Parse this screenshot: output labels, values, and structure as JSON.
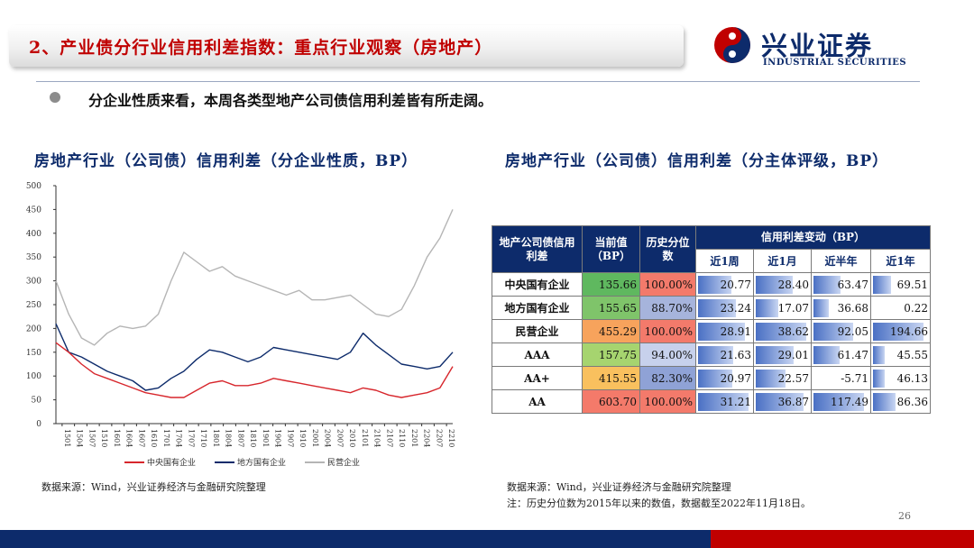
{
  "header": {
    "title": "2、产业债分行业信用利差指数：重点行业观察（房地产）",
    "logo_cn": "兴业证券",
    "logo_en": "INDUSTRIAL SECURITIES"
  },
  "bullet": "分企业性质来看，本周各类型地产公司债信用利差皆有所走阔。",
  "left": {
    "subtitle": "房地产行业（公司债）信用利差（分企业性质，BP）",
    "source": "数据来源：Wind，兴业证券经济与金融研究院整理"
  },
  "right": {
    "subtitle": "房地产行业（公司债）信用利差（分主体评级，BP）",
    "source": "数据来源：Wind，兴业证券经济与金融研究院整理",
    "note": "注：历史分位数为2015年以来的数值，数据截至2022年11月18日。"
  },
  "table": {
    "h_name": "地产公司债信用利差",
    "h_current": "当前值（BP）",
    "h_pct": "历史分位数",
    "h_change": "信用利差变动（BP）",
    "h_periods": [
      "近1周",
      "近1月",
      "近半年",
      "近1年"
    ],
    "rows": [
      {
        "name": "中央国有企业",
        "current": "135.66",
        "pct": "100.00%",
        "changes": [
          "20.77",
          "28.40",
          "63.47",
          "69.51"
        ],
        "color": "#5fb85f"
      },
      {
        "name": "地方国有企业",
        "current": "155.65",
        "pct": "88.70%",
        "changes": [
          "23.24",
          "17.07",
          "36.68",
          "0.22"
        ],
        "color": "#7fc46a"
      },
      {
        "name": "民营企业",
        "current": "455.29",
        "pct": "100.00%",
        "changes": [
          "28.91",
          "38.62",
          "92.05",
          "194.66"
        ],
        "color": "#f7a35c"
      },
      {
        "name": "AAA",
        "current": "157.75",
        "pct": "94.00%",
        "changes": [
          "21.63",
          "29.01",
          "61.47",
          "45.55"
        ],
        "color": "#a6d46f"
      },
      {
        "name": "AA+",
        "current": "415.55",
        "pct": "82.30%",
        "changes": [
          "20.97",
          "22.57",
          "-5.71",
          "46.13"
        ],
        "color": "#f9c05e"
      },
      {
        "name": "AA",
        "current": "603.70",
        "pct": "100.00%",
        "changes": [
          "31.21",
          "36.87",
          "117.49",
          "86.36"
        ],
        "color": "#f47a6a"
      }
    ],
    "pct_colors": [
      "#f37a6b",
      "#a6b4dc",
      "#f37a6b",
      "#c7d1ec",
      "#8fa2d6",
      "#f37a6b"
    ]
  },
  "chart_data": {
    "type": "line",
    "ylim": [
      0,
      500
    ],
    "yticks": [
      0,
      50,
      100,
      150,
      200,
      250,
      300,
      350,
      400,
      450,
      500
    ],
    "xticks": [
      "1501",
      "1504",
      "1507",
      "1510",
      "1601",
      "1604",
      "1607",
      "1610",
      "1701",
      "1704",
      "1707",
      "1710",
      "1801",
      "1804",
      "1807",
      "1810",
      "1901",
      "1904",
      "1907",
      "1910",
      "2001",
      "2004",
      "2007",
      "2010",
      "2101",
      "2104",
      "2107",
      "2110",
      "2201",
      "2204",
      "2207",
      "2210"
    ],
    "series": [
      {
        "name": "中央国有企业",
        "color": "#d7262c",
        "values": [
          170,
          150,
          125,
          105,
          95,
          85,
          75,
          65,
          60,
          55,
          55,
          70,
          85,
          90,
          80,
          80,
          85,
          95,
          90,
          85,
          80,
          75,
          70,
          65,
          75,
          70,
          60,
          55,
          60,
          65,
          75,
          120
        ]
      },
      {
        "name": "地方国有企业",
        "color": "#0d2b6b",
        "values": [
          210,
          150,
          140,
          125,
          110,
          100,
          90,
          70,
          75,
          95,
          110,
          135,
          155,
          150,
          140,
          130,
          140,
          160,
          155,
          150,
          145,
          140,
          135,
          150,
          190,
          165,
          145,
          125,
          120,
          115,
          120,
          150
        ]
      },
      {
        "name": "民营企业",
        "color": "#b5b5b5",
        "values": [
          300,
          230,
          180,
          165,
          190,
          205,
          200,
          205,
          230,
          300,
          360,
          340,
          320,
          330,
          310,
          300,
          290,
          280,
          270,
          280,
          260,
          260,
          265,
          270,
          250,
          230,
          225,
          240,
          290,
          350,
          390,
          450
        ]
      }
    ]
  },
  "page_number": "26"
}
